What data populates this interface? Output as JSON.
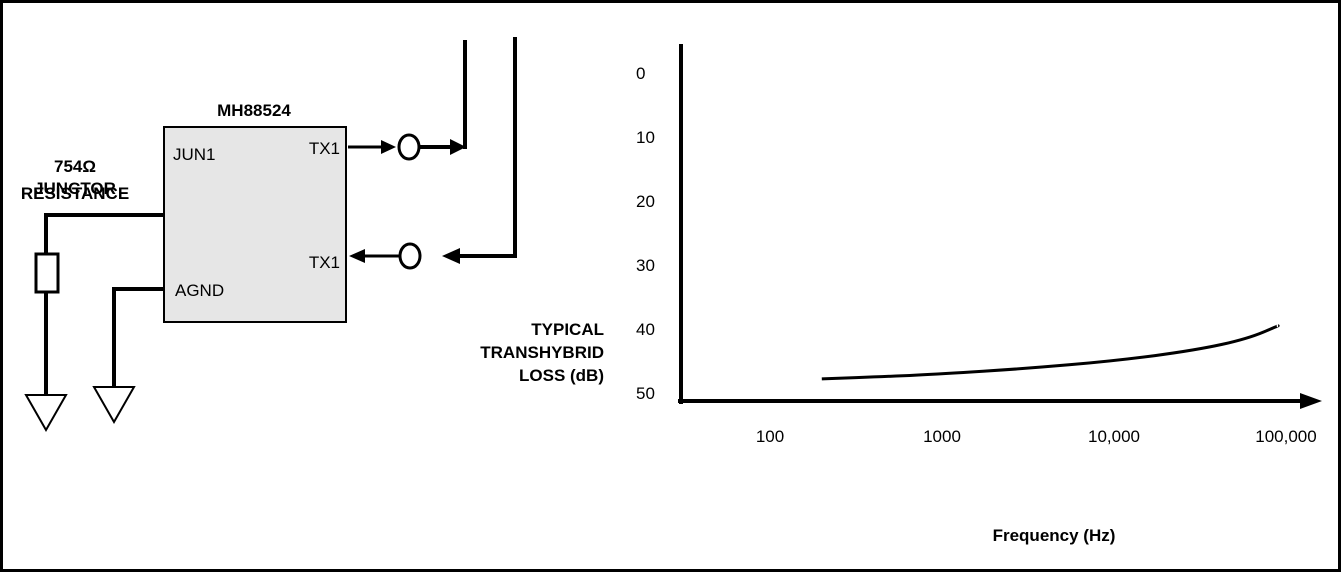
{
  "circuit": {
    "chip_name": "MH88524",
    "pin_jun1": "JUN1",
    "pin_tx1_top": "TX1",
    "pin_tx1_bottom": "TX1",
    "pin_agnd": "AGND",
    "resistor_value": "754Ω",
    "resistor_label_line1": "JUNCTOR",
    "resistor_label_line2": "RESISTANCE"
  },
  "chart_data": {
    "type": "line",
    "ylabel_lines": [
      "TYPICAL",
      "TRANSHYBRID",
      "LOSS  (dB)"
    ],
    "xlabel": "Frequency (Hz)",
    "x_scale": "log",
    "y_inverted": true,
    "y_ticks": [
      "0",
      "10",
      "20",
      "30",
      "40",
      "50"
    ],
    "x_ticks": [
      "100",
      "1000",
      "10,000",
      "100,000"
    ],
    "ylim": [
      0,
      50
    ],
    "xlim": [
      30,
      150000
    ],
    "series": [
      {
        "points": [
          [
            200,
            47.8
          ],
          [
            500,
            47.4
          ],
          [
            1000,
            47.0
          ],
          [
            3000,
            46.2
          ],
          [
            10000,
            45.0
          ],
          [
            30000,
            43.3
          ],
          [
            60000,
            41.5
          ],
          [
            90000,
            39.5
          ]
        ]
      }
    ],
    "grid": false
  }
}
